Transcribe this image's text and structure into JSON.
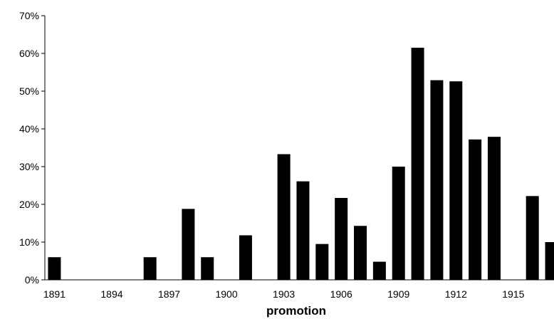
{
  "chart_data": {
    "type": "bar",
    "title": "",
    "xlabel": "promotion",
    "ylabel": "",
    "ylim": [
      0,
      70
    ],
    "y_tick_values": [
      0,
      10,
      20,
      30,
      40,
      50,
      60,
      70
    ],
    "y_tick_labels": [
      "0%",
      "10%",
      "20%",
      "30%",
      "40%",
      "50%",
      "60%",
      "70%"
    ],
    "grid": false,
    "legend": "none",
    "bar_color": "#000000",
    "x_tick_labels": [
      "1891",
      "1894",
      "1897",
      "1900",
      "1903",
      "1906",
      "1909",
      "1912",
      "1915"
    ],
    "categories": [
      "1891",
      "1892",
      "1893",
      "1894",
      "1895",
      "1896",
      "1897",
      "1898",
      "1899",
      "1900",
      "1901",
      "1902",
      "1903",
      "1904",
      "1905",
      "1906",
      "1907",
      "1908",
      "1909",
      "1910",
      "1911",
      "1912",
      "1913",
      "1914",
      "1915",
      "1916",
      "1917"
    ],
    "values": [
      6,
      0,
      0,
      0,
      0,
      6,
      0,
      18.8,
      6,
      0,
      11.8,
      0,
      33.3,
      26.1,
      9.5,
      21.7,
      14.3,
      4.8,
      30,
      61.5,
      52.9,
      52.6,
      37.2,
      37.9,
      0,
      22.2,
      10
    ]
  }
}
